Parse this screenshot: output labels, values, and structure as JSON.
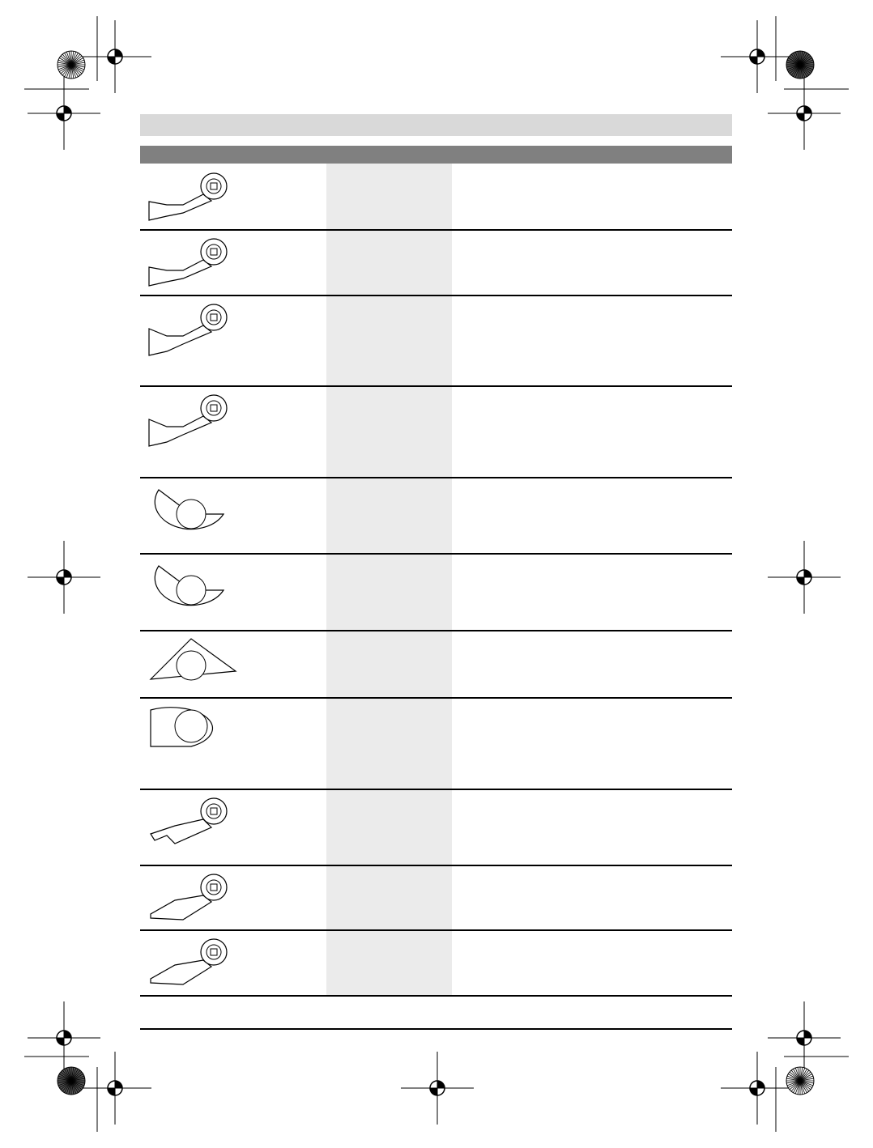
{
  "table": {
    "rows": [
      {
        "icon": "plunge-cut-blade-narrow-icon"
      },
      {
        "icon": "plunge-cut-blade-narrow-icon"
      },
      {
        "icon": "plunge-cut-blade-wide-icon"
      },
      {
        "icon": "plunge-cut-blade-wide-icon"
      },
      {
        "icon": "segment-saw-blade-icon"
      },
      {
        "icon": "segment-saw-blade-icon"
      },
      {
        "icon": "delta-sanding-plate-icon"
      },
      {
        "icon": "grout-removal-plate-icon"
      },
      {
        "icon": "hook-blade-icon"
      },
      {
        "icon": "scraper-blade-rigid-icon"
      },
      {
        "icon": "scraper-blade-flexible-icon"
      }
    ]
  },
  "colors": {
    "title_band": "#d9d9d9",
    "header_band": "#808080",
    "shaded_column": "#ebebeb"
  }
}
